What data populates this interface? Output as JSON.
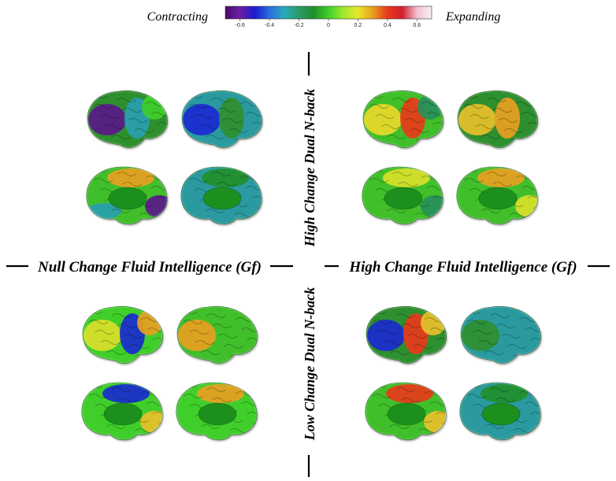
{
  "colorbar": {
    "left_label": "Contracting",
    "right_label": "Expanding",
    "ticks": [
      "-0.6",
      "-0.4",
      "-0.2",
      "0",
      "0.2",
      "0.4",
      "0.6"
    ],
    "tick_values": [
      -0.6,
      -0.4,
      -0.2,
      0,
      0.2,
      0.4,
      0.6
    ],
    "range": [
      -0.7,
      0.7
    ],
    "stops": [
      "#4b0a6e",
      "#6b1fa3",
      "#1a1ad0",
      "#2a6ee0",
      "#2aaab8",
      "#2a9a6a",
      "#1f8f2a",
      "#3fcf2a",
      "#9fe82a",
      "#e8e82a",
      "#e8a020",
      "#e83a1a",
      "#d02030",
      "#f0c0d0",
      "#f8f0f4"
    ]
  },
  "axes": {
    "left_label": "Null Change Fluid Intelligence (Gf)",
    "right_label": "High Change Fluid Intelligence (Gf)",
    "top_label": "High Change Dual N-back",
    "bottom_label": "Low Change Dual N-back"
  },
  "quadrants": [
    {
      "id": "top-left",
      "views": [
        {
          "view": "lateral-left",
          "base": "#2f8f2f",
          "patches": [
            "#5b1a8a",
            "#2aa0b0",
            "#3fcf2a"
          ]
        },
        {
          "view": "lateral-right",
          "base": "#2a9aa0",
          "patches": [
            "#1a2acf",
            "#2f8f2f"
          ]
        },
        {
          "view": "medial-left",
          "base": "#3fbf2a",
          "patches": [
            "#e8a020",
            "#5b1a8a",
            "#2aa0b0"
          ]
        },
        {
          "view": "medial-right",
          "base": "#2a9aa0",
          "patches": [
            "#1f8f2a"
          ]
        }
      ]
    },
    {
      "id": "top-right",
      "views": [
        {
          "view": "lateral-left",
          "base": "#3fbf2a",
          "patches": [
            "#e8d82a",
            "#e83a1a",
            "#2a8f5a"
          ]
        },
        {
          "view": "lateral-right",
          "base": "#2f8f2f",
          "patches": [
            "#e8c02a",
            "#e8a020"
          ]
        },
        {
          "view": "medial-left",
          "base": "#3fbf2a",
          "patches": [
            "#d8e02a",
            "#2a8f5a"
          ]
        },
        {
          "view": "medial-right",
          "base": "#3fbf2a",
          "patches": [
            "#e8a020",
            "#d8e02a"
          ]
        }
      ]
    },
    {
      "id": "bottom-left",
      "views": [
        {
          "view": "lateral-left",
          "base": "#3fcf2a",
          "patches": [
            "#d8e02a",
            "#1a2acf",
            "#e8a020"
          ]
        },
        {
          "view": "lateral-right",
          "base": "#3fbf2a",
          "patches": [
            "#e8a020"
          ]
        },
        {
          "view": "medial-left",
          "base": "#3fcf2a",
          "patches": [
            "#1a2acf",
            "#e8c02a"
          ]
        },
        {
          "view": "medial-right",
          "base": "#3fcf2a",
          "patches": [
            "#e8a020"
          ]
        }
      ]
    },
    {
      "id": "bottom-right",
      "views": [
        {
          "view": "lateral-left",
          "base": "#2f8f2f",
          "patches": [
            "#1a2acf",
            "#e83a1a",
            "#e8c02a"
          ]
        },
        {
          "view": "lateral-right",
          "base": "#2a9aa0",
          "patches": [
            "#2f8f2f"
          ]
        },
        {
          "view": "medial-left",
          "base": "#3fbf2a",
          "patches": [
            "#e83a1a",
            "#e8c02a"
          ]
        },
        {
          "view": "medial-right",
          "base": "#2a9aa0",
          "patches": [
            "#1f8f2a"
          ]
        }
      ]
    }
  ]
}
